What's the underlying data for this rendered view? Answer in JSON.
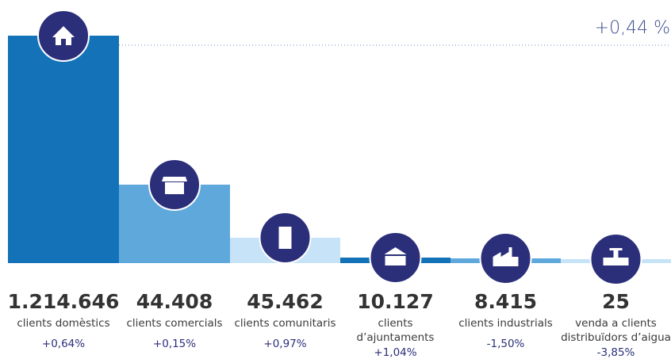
{
  "headline_change": "+0,44 %",
  "items": [
    {
      "value": "1.214.646",
      "label_lines": [
        "clients domèstics"
      ],
      "change": "+0,64%"
    },
    {
      "value": "44.408",
      "label_lines": [
        "clients comercials"
      ],
      "change": "+0,15%"
    },
    {
      "value": "45.462",
      "label_lines": [
        "clients comunitaris"
      ],
      "change": "+0,97%"
    },
    {
      "value": "10.127",
      "label_lines": [
        "clients",
        "d’ajuntaments"
      ],
      "change": "+1,04%"
    },
    {
      "value": "8.415",
      "label_lines": [
        "clients industrials"
      ],
      "change": "-1,50%"
    },
    {
      "value": "25",
      "label_lines": [
        "venda a clients",
        "distribuïdors d’aigua"
      ],
      "change": "-3,85%"
    }
  ]
}
